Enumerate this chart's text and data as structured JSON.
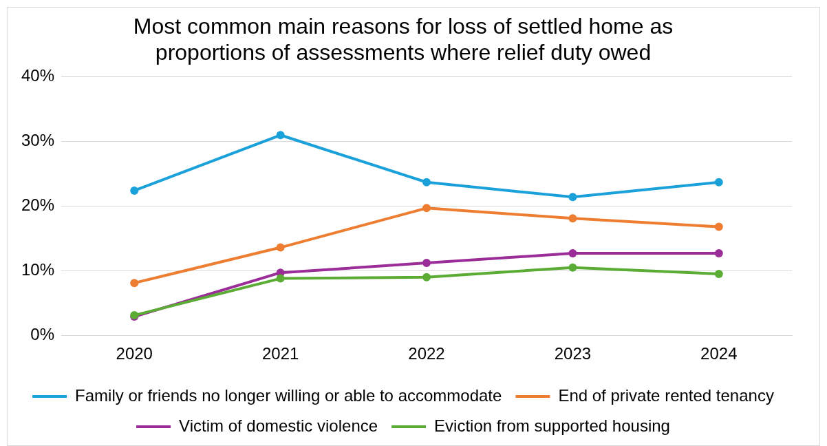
{
  "chart_data": {
    "type": "line",
    "title": "Most common main reasons for loss of settled home as proportions of assessments where relief duty owed",
    "categories": [
      "2020",
      "2021",
      "2022",
      "2023",
      "2024"
    ],
    "series": [
      {
        "name": "Family or friends no longer willing or able to accommodate",
        "color": "#1ba1d9",
        "values": [
          22.4,
          31.0,
          23.7,
          21.4,
          23.7
        ]
      },
      {
        "name": "End of private rented tenancy",
        "color": "#ed7d31",
        "values": [
          8.1,
          13.6,
          19.7,
          18.1,
          16.8
        ]
      },
      {
        "name": "Victim of domestic violence",
        "color": "#9b2d99",
        "values": [
          2.9,
          9.7,
          11.2,
          12.7,
          12.7
        ]
      },
      {
        "name": "Eviction from supported housing",
        "color": "#5aac34",
        "values": [
          3.1,
          8.8,
          9.0,
          10.5,
          9.5
        ]
      }
    ],
    "ylim": [
      0,
      40
    ],
    "yticks": [
      {
        "value": 0,
        "label": "0%"
      },
      {
        "value": 10,
        "label": "10%"
      },
      {
        "value": 20,
        "label": "20%"
      },
      {
        "value": 30,
        "label": "30%"
      },
      {
        "value": 40,
        "label": "40%"
      }
    ],
    "grid": "y",
    "legend": "bottom",
    "marker": "circle",
    "line_style": "solid"
  }
}
